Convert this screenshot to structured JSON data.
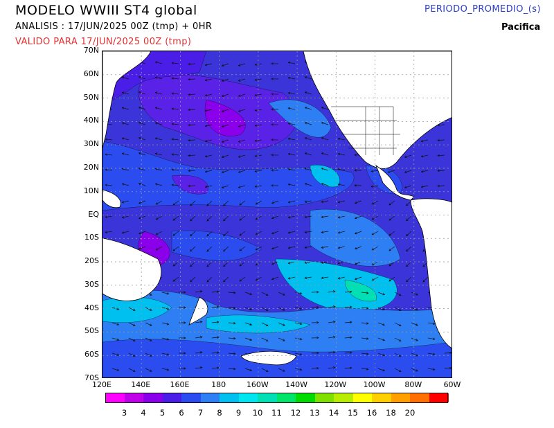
{
  "header": {
    "title": "MODELO WWIII ST4 global",
    "analysis": "ANALISIS : 17/JUN/2025 00Z  (tmp) + 0HR",
    "valid": "VALIDO PARA  17/JUN/2025 00Z  (tmp)",
    "period": "PERIODO_PROMEDIO_(s)",
    "region": "Pacifica"
  },
  "map": {
    "lat_labels": [
      "70N",
      "60N",
      "50N",
      "40N",
      "30N",
      "20N",
      "10N",
      "EQ",
      "10S",
      "20S",
      "30S",
      "40S",
      "50S",
      "60S",
      "70S"
    ],
    "lon_labels": [
      "120E",
      "140E",
      "160E",
      "180",
      "160W",
      "140W",
      "120W",
      "100W",
      "80W",
      "60W"
    ],
    "colors": {
      "land": "#ffffff",
      "ocean_base": "#3b34d8",
      "grid": "#9a9a9a"
    }
  },
  "colorbar": {
    "colors": [
      "#ff00ff",
      "#c000e8",
      "#8a00ea",
      "#4b1ee8",
      "#2b4df0",
      "#2e7ff4",
      "#00c0f0",
      "#00e6ee",
      "#00e0b4",
      "#00e46a",
      "#00dc00",
      "#80e000",
      "#b8ec00",
      "#ffff00",
      "#ffd000",
      "#ffa000",
      "#ff7000",
      "#ff0000"
    ],
    "labels": [
      "3",
      "4",
      "5",
      "6",
      "7",
      "8",
      "9",
      "10",
      "11",
      "12",
      "13",
      "14",
      "15",
      "16",
      "18",
      "20"
    ]
  }
}
